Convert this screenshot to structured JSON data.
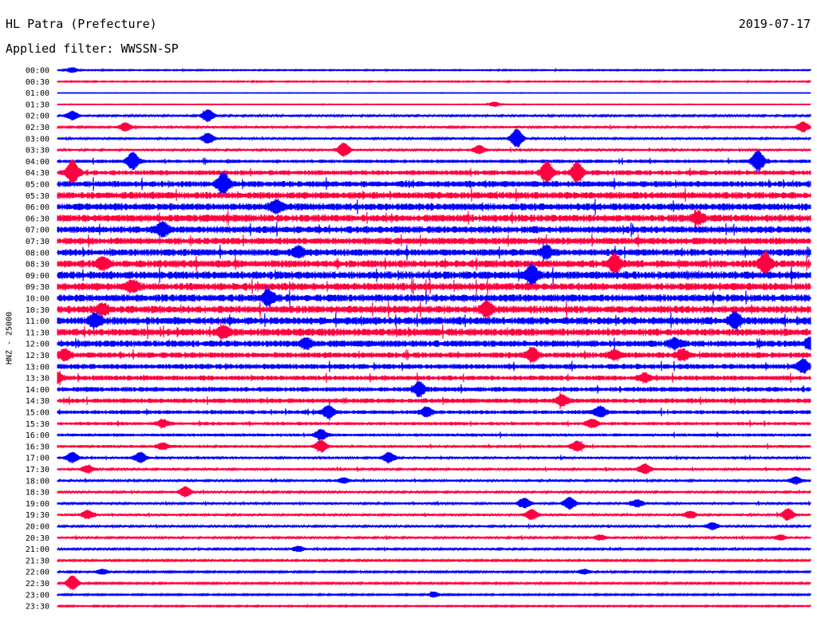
{
  "header": {
    "station": "HL Patra (Prefecture)",
    "date": "2019-07-17",
    "filter": "Applied filter: WWSSN-SP"
  },
  "chart_data": {
    "type": "line",
    "chart_kind": "helicorder",
    "ylabel": "HNZ - 25000",
    "colors": [
      "#0000ff",
      "#ff0040"
    ],
    "rows": [
      {
        "time": "00:00",
        "level": 0.5
      },
      {
        "time": "00:30",
        "level": 0.5
      },
      {
        "time": "01:00",
        "level": 0.2
      },
      {
        "time": "01:30",
        "level": 0.3
      },
      {
        "time": "02:00",
        "level": 1.0
      },
      {
        "time": "02:30",
        "level": 1.0
      },
      {
        "time": "03:00",
        "level": 1.1
      },
      {
        "time": "03:30",
        "level": 1.1
      },
      {
        "time": "04:00",
        "level": 1.6
      },
      {
        "time": "04:30",
        "level": 2.3
      },
      {
        "time": "05:00",
        "level": 2.8
      },
      {
        "time": "05:30",
        "level": 3.2
      },
      {
        "time": "06:00",
        "level": 3.3
      },
      {
        "time": "06:30",
        "level": 3.3
      },
      {
        "time": "07:00",
        "level": 3.2
      },
      {
        "time": "07:30",
        "level": 3.1
      },
      {
        "time": "08:00",
        "level": 3.2
      },
      {
        "time": "08:30",
        "level": 3.4
      },
      {
        "time": "09:00",
        "level": 3.6
      },
      {
        "time": "09:30",
        "level": 3.4
      },
      {
        "time": "10:00",
        "level": 3.4
      },
      {
        "time": "10:30",
        "level": 3.4
      },
      {
        "time": "11:00",
        "level": 3.5
      },
      {
        "time": "11:30",
        "level": 3.4
      },
      {
        "time": "12:00",
        "level": 3.0
      },
      {
        "time": "12:30",
        "level": 2.6
      },
      {
        "time": "13:00",
        "level": 2.4
      },
      {
        "time": "13:30",
        "level": 2.2
      },
      {
        "time": "14:00",
        "level": 2.2
      },
      {
        "time": "14:30",
        "level": 2.2
      },
      {
        "time": "15:00",
        "level": 1.8
      },
      {
        "time": "15:30",
        "level": 1.5
      },
      {
        "time": "16:00",
        "level": 1.4
      },
      {
        "time": "16:30",
        "level": 1.3
      },
      {
        "time": "17:00",
        "level": 1.2
      },
      {
        "time": "17:30",
        "level": 1.1
      },
      {
        "time": "18:00",
        "level": 1.1
      },
      {
        "time": "18:30",
        "level": 1.0
      },
      {
        "time": "19:00",
        "level": 1.1
      },
      {
        "time": "19:30",
        "level": 1.1
      },
      {
        "time": "20:00",
        "level": 1.0
      },
      {
        "time": "20:30",
        "level": 1.0
      },
      {
        "time": "21:00",
        "level": 0.9
      },
      {
        "time": "21:30",
        "level": 0.8
      },
      {
        "time": "22:00",
        "level": 0.8
      },
      {
        "time": "22:30",
        "level": 0.8
      },
      {
        "time": "23:00",
        "level": 0.7
      },
      {
        "time": "23:30",
        "level": 0.6
      }
    ],
    "events": [
      {
        "row": 0,
        "x": 0.02,
        "amp": 3
      },
      {
        "row": 3,
        "x": 0.58,
        "amp": 3
      },
      {
        "row": 4,
        "x": 0.02,
        "amp": 5
      },
      {
        "row": 4,
        "x": 0.2,
        "amp": 7
      },
      {
        "row": 5,
        "x": 0.09,
        "amp": 5
      },
      {
        "row": 5,
        "x": 0.99,
        "amp": 6
      },
      {
        "row": 6,
        "x": 0.2,
        "amp": 6
      },
      {
        "row": 6,
        "x": 0.61,
        "amp": 11
      },
      {
        "row": 7,
        "x": 0.38,
        "amp": 8
      },
      {
        "row": 7,
        "x": 0.56,
        "amp": 5
      },
      {
        "row": 8,
        "x": 0.1,
        "amp": 10
      },
      {
        "row": 8,
        "x": 0.93,
        "amp": 12
      },
      {
        "row": 9,
        "x": 0.02,
        "amp": 14
      },
      {
        "row": 9,
        "x": 0.65,
        "amp": 12
      },
      {
        "row": 9,
        "x": 0.69,
        "amp": 11
      },
      {
        "row": 10,
        "x": 0.22,
        "amp": 12
      },
      {
        "row": 12,
        "x": 0.29,
        "amp": 6
      },
      {
        "row": 13,
        "x": 0.85,
        "amp": 6
      },
      {
        "row": 14,
        "x": 0.14,
        "amp": 8
      },
      {
        "row": 16,
        "x": 0.32,
        "amp": 6
      },
      {
        "row": 16,
        "x": 0.65,
        "amp": 6
      },
      {
        "row": 17,
        "x": 0.06,
        "amp": 6
      },
      {
        "row": 17,
        "x": 0.74,
        "amp": 10
      },
      {
        "row": 17,
        "x": 0.94,
        "amp": 12
      },
      {
        "row": 18,
        "x": 0.63,
        "amp": 11
      },
      {
        "row": 19,
        "x": 0.1,
        "amp": 6
      },
      {
        "row": 20,
        "x": 0.28,
        "amp": 8
      },
      {
        "row": 21,
        "x": 0.06,
        "amp": 5
      },
      {
        "row": 21,
        "x": 0.57,
        "amp": 8
      },
      {
        "row": 22,
        "x": 0.05,
        "amp": 7
      },
      {
        "row": 22,
        "x": 0.9,
        "amp": 9
      },
      {
        "row": 23,
        "x": 0.22,
        "amp": 6
      },
      {
        "row": 24,
        "x": 0.33,
        "amp": 5
      },
      {
        "row": 24,
        "x": 0.82,
        "amp": 5
      },
      {
        "row": 24,
        "x": 1.0,
        "amp": 6
      },
      {
        "row": 25,
        "x": 0.01,
        "amp": 6
      },
      {
        "row": 25,
        "x": 0.63,
        "amp": 8
      },
      {
        "row": 25,
        "x": 0.74,
        "amp": 5
      },
      {
        "row": 25,
        "x": 0.83,
        "amp": 6
      },
      {
        "row": 26,
        "x": 0.99,
        "amp": 8
      },
      {
        "row": 27,
        "x": 0.0,
        "amp": 5
      },
      {
        "row": 27,
        "x": 0.78,
        "amp": 5
      },
      {
        "row": 28,
        "x": 0.48,
        "amp": 8
      },
      {
        "row": 29,
        "x": 0.67,
        "amp": 6
      },
      {
        "row": 30,
        "x": 0.36,
        "amp": 7
      },
      {
        "row": 30,
        "x": 0.49,
        "amp": 5
      },
      {
        "row": 30,
        "x": 0.72,
        "amp": 6
      },
      {
        "row": 31,
        "x": 0.14,
        "amp": 4
      },
      {
        "row": 31,
        "x": 0.71,
        "amp": 5
      },
      {
        "row": 32,
        "x": 0.35,
        "amp": 6
      },
      {
        "row": 33,
        "x": 0.14,
        "amp": 4
      },
      {
        "row": 33,
        "x": 0.35,
        "amp": 7
      },
      {
        "row": 33,
        "x": 0.69,
        "amp": 6
      },
      {
        "row": 34,
        "x": 0.02,
        "amp": 6
      },
      {
        "row": 34,
        "x": 0.11,
        "amp": 6
      },
      {
        "row": 34,
        "x": 0.44,
        "amp": 6
      },
      {
        "row": 35,
        "x": 0.04,
        "amp": 4
      },
      {
        "row": 35,
        "x": 0.78,
        "amp": 6
      },
      {
        "row": 36,
        "x": 0.38,
        "amp": 3
      },
      {
        "row": 36,
        "x": 0.98,
        "amp": 4
      },
      {
        "row": 37,
        "x": 0.17,
        "amp": 6
      },
      {
        "row": 38,
        "x": 0.62,
        "amp": 6
      },
      {
        "row": 38,
        "x": 0.68,
        "amp": 7
      },
      {
        "row": 38,
        "x": 0.77,
        "amp": 4
      },
      {
        "row": 39,
        "x": 0.04,
        "amp": 5
      },
      {
        "row": 39,
        "x": 0.63,
        "amp": 6
      },
      {
        "row": 39,
        "x": 0.84,
        "amp": 4
      },
      {
        "row": 39,
        "x": 0.97,
        "amp": 7
      },
      {
        "row": 40,
        "x": 0.87,
        "amp": 4
      },
      {
        "row": 41,
        "x": 0.72,
        "amp": 3
      },
      {
        "row": 41,
        "x": 0.96,
        "amp": 3
      },
      {
        "row": 42,
        "x": 0.32,
        "amp": 3
      },
      {
        "row": 44,
        "x": 0.06,
        "amp": 3
      },
      {
        "row": 44,
        "x": 0.7,
        "amp": 3
      },
      {
        "row": 45,
        "x": 0.02,
        "amp": 9
      },
      {
        "row": 46,
        "x": 0.5,
        "amp": 3
      }
    ]
  }
}
